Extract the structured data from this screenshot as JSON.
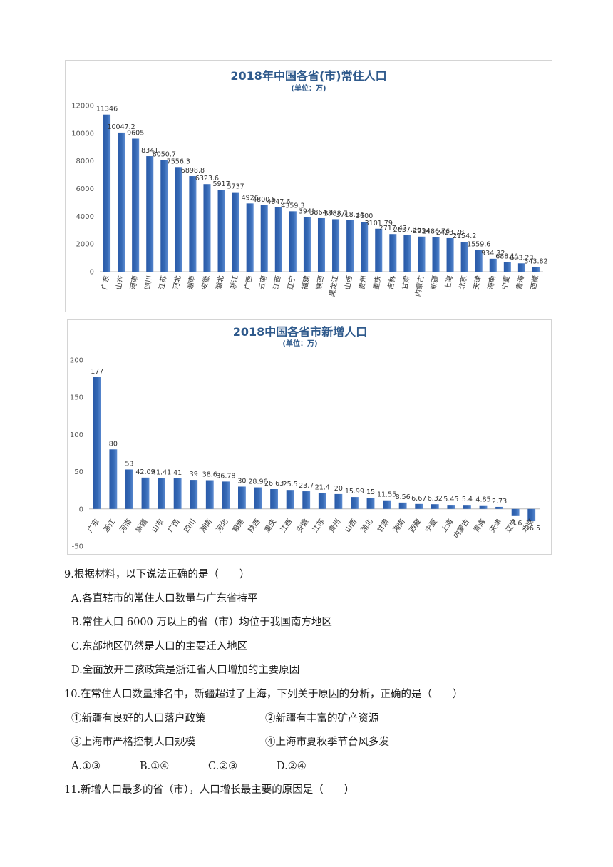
{
  "charts": [
    {
      "type": "bar",
      "title": "2018年中国各省(市)常住人口",
      "subtitle": "(单位：万)",
      "categories": [
        "广东",
        "山东",
        "河南",
        "四川",
        "江苏",
        "河北",
        "湖南",
        "安徽",
        "湖北",
        "浙江",
        "广西",
        "云南",
        "江西",
        "辽宁",
        "福建",
        "陕西",
        "黑龙江",
        "山西",
        "贵州",
        "重庆",
        "吉林",
        "甘肃",
        "内蒙古",
        "新疆",
        "上海",
        "北京",
        "天津",
        "海南",
        "宁夏",
        "青海",
        "西藏"
      ],
      "values": [
        11346,
        10047.2,
        9605,
        8341,
        8050.7,
        7556.3,
        6898.8,
        6323.6,
        5917,
        5737,
        4926,
        4800.5,
        4647.6,
        4359.3,
        3941,
        3864.4,
        3788.7,
        3718.34,
        3600,
        3101.79,
        2717.43,
        2637.26,
        2534,
        2486.76,
        2423.78,
        2154.2,
        1559.6,
        934.32,
        688.11,
        603.23,
        343.82
      ],
      "value_labels": [
        "11346",
        "10047.2",
        "9605",
        "8341",
        "8050.7",
        "7556.3",
        "6898.8",
        "6323.6",
        "5917",
        "5737",
        "4926",
        "4800.5",
        "4647.6",
        "4359.3",
        "3941",
        "3864.4",
        "3788.7",
        "3718.34",
        "3600",
        "3101.79",
        "2717.43",
        "2637.26",
        "2534",
        "2486.76",
        "2423.78",
        "2154.2",
        "1559.6",
        "934.32",
        "688.11",
        "603.23",
        "343.82"
      ],
      "yticks": [
        "0",
        "2000",
        "4000",
        "6000",
        "8000",
        "10000",
        "12000"
      ],
      "ylim": [
        0,
        12000
      ],
      "color": "#3569b5"
    },
    {
      "type": "bar",
      "title": "2018中国各省市新增人口",
      "subtitle": "(单位：万)",
      "categories": [
        "广东",
        "浙江",
        "河南",
        "新疆",
        "山东",
        "广西",
        "四川",
        "湖南",
        "河北",
        "福建",
        "陕西",
        "重庆",
        "江西",
        "安徽",
        "江苏",
        "贵州",
        "山西",
        "湖北",
        "甘肃",
        "海南",
        "西藏",
        "宁夏",
        "上海",
        "内蒙古",
        "青海",
        "天津",
        "辽宁",
        "北京"
      ],
      "values": [
        177,
        80,
        53,
        42.09,
        41.41,
        41,
        39,
        38.6,
        36.78,
        30,
        28.96,
        26.63,
        25.5,
        23.7,
        21.4,
        20,
        15.99,
        15,
        11.55,
        8.56,
        6.67,
        6.32,
        5.45,
        5.4,
        4.85,
        2.73,
        -9.6,
        -16.5
      ],
      "value_labels": [
        "177",
        "80",
        "53",
        "42.09",
        "41.41",
        "41",
        "39",
        "38.6",
        "36.78",
        "30",
        "28.96",
        "26.63",
        "25.5",
        "23.7",
        "21.4",
        "20",
        "15.99",
        "15",
        "11.55",
        "8.56",
        "6.67",
        "6.32",
        "5.45",
        "5.4",
        "4.85",
        "2.73",
        "-9.6",
        "-16.5"
      ],
      "yticks": [
        "-50",
        "0",
        "50",
        "100",
        "150",
        "200"
      ],
      "ylim": [
        -50,
        200
      ],
      "color": "#3569b5"
    }
  ],
  "questions": {
    "q9": {
      "stem": "9.根据材料，以下说法正确的是（　　）",
      "a": "A.各直辖市的常住人口数量与广东省持平",
      "b": "B.常住人口 6000 万以上的省（市）均位于我国南方地区",
      "c": "C.东部地区仍然是人口的主要迁入地区",
      "d": "D.全面放开二孩政策是浙江省人口增加的主要原因"
    },
    "q10": {
      "stem": "10.在常住人口数量排名中，新疆超过了上海，下列关于原因的分析，正确的是（　　）",
      "s1": "①新疆有良好的人口落户政策",
      "s2": "②新疆有丰富的矿产资源",
      "s3": "③上海市严格控制人口规模",
      "s4": "④上海市夏秋季节台风多发",
      "a": "A.①③",
      "b": "B.①④",
      "c": "C.②③",
      "d": "D.②④"
    },
    "q11": {
      "stem": "11.新增人口最多的省（市），人口增长最主要的原因是（　　）"
    }
  }
}
